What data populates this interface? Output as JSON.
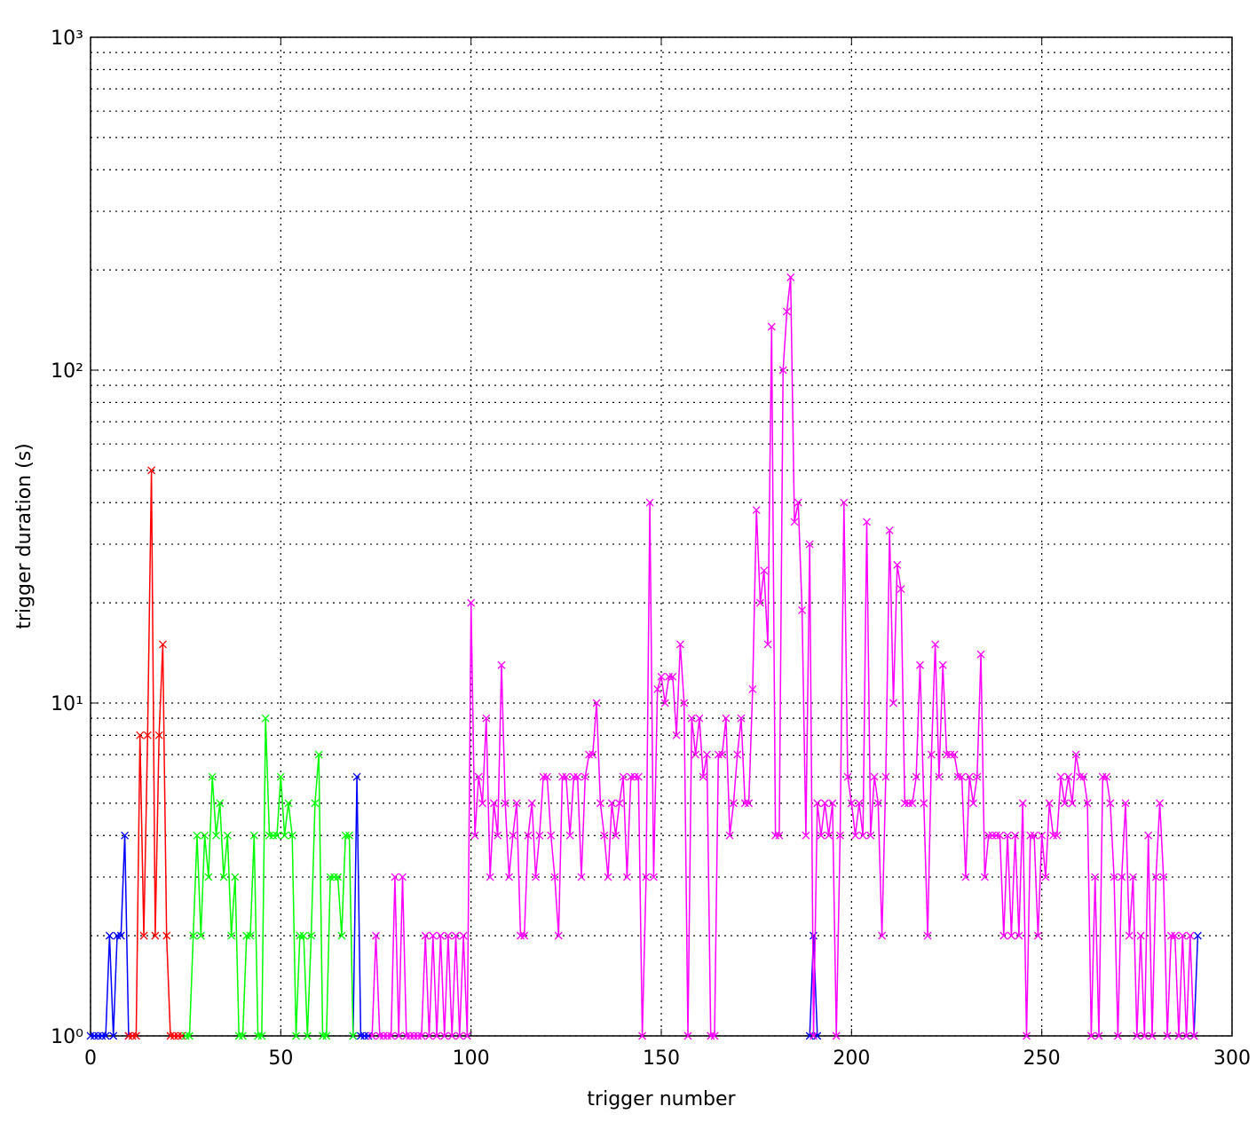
{
  "chart_data": {
    "type": "line",
    "xlabel": "trigger number",
    "ylabel": "trigger duration (s)",
    "ylog": true,
    "grid": true,
    "marker": "x",
    "xlim": [
      0,
      300
    ],
    "xticks": [
      0,
      50,
      100,
      150,
      200,
      250,
      300
    ],
    "ylim": [
      1,
      1000
    ],
    "yticks": [
      {
        "value": 1,
        "label": "10⁰"
      },
      {
        "value": 10,
        "label": "10¹"
      },
      {
        "value": 100,
        "label": "10²"
      },
      {
        "value": 1000,
        "label": "10³"
      }
    ],
    "yminorticks": [
      2,
      3,
      4,
      5,
      6,
      7,
      8,
      9,
      20,
      30,
      40,
      50,
      60,
      70,
      80,
      90,
      200,
      300,
      400,
      500,
      600,
      700,
      800,
      900
    ],
    "series": [
      {
        "color": "#0000ff",
        "x": [
          0,
          1,
          2,
          3,
          4,
          5,
          6,
          7,
          8,
          9,
          10,
          11,
          69,
          70,
          71,
          72,
          73,
          74,
          189,
          190,
          191,
          192,
          290,
          291
        ],
        "values": [
          1,
          1,
          1,
          1,
          1,
          2,
          1,
          2,
          2,
          4,
          1,
          null,
          1,
          6,
          1,
          1,
          1,
          null,
          1,
          2,
          1,
          null,
          1,
          2
        ]
      },
      {
        "color": "#ff0000",
        "x": [
          10,
          11,
          12,
          13,
          14,
          15,
          16,
          17,
          18,
          19,
          20,
          21,
          22,
          23,
          24
        ],
        "values": [
          1,
          1,
          1,
          8,
          2,
          8,
          50,
          2,
          8,
          15,
          2,
          1,
          1,
          1,
          1
        ]
      },
      {
        "color": "#00ff00",
        "x": [
          25,
          26,
          27,
          28,
          29,
          30,
          31,
          32,
          33,
          34,
          35,
          36,
          37,
          38,
          39,
          40,
          41,
          42,
          43,
          44,
          45,
          46,
          47,
          48,
          49,
          50,
          51,
          52,
          53,
          54,
          55,
          56,
          57,
          58,
          59,
          60,
          61,
          62,
          63,
          64,
          65,
          66,
          67,
          68,
          69
        ],
        "values": [
          1,
          1,
          2,
          4,
          2,
          4,
          3,
          6,
          4,
          5,
          3,
          4,
          2,
          3,
          1,
          1,
          2,
          2,
          4,
          1,
          1,
          9,
          4,
          4,
          4,
          6,
          4,
          5,
          4,
          1,
          2,
          2,
          1,
          2,
          5,
          7,
          1,
          1,
          3,
          3,
          3,
          2,
          4,
          4,
          1
        ]
      },
      {
        "color": "#ff00ff",
        "x": [
          74,
          75,
          76,
          77,
          78,
          79,
          80,
          81,
          82,
          83,
          84,
          85,
          86,
          87,
          88,
          89,
          90,
          91,
          92,
          93,
          94,
          95,
          96,
          97,
          98,
          99,
          100,
          101,
          102,
          103,
          104,
          105,
          106,
          107,
          108,
          109,
          110,
          111,
          112,
          113,
          114,
          115,
          116,
          117,
          118,
          119,
          120,
          121,
          122,
          123,
          124,
          125,
          126,
          127,
          128,
          129,
          130,
          131,
          132,
          133,
          134,
          135,
          136,
          137,
          138,
          139,
          140,
          141,
          142,
          143,
          144,
          145,
          146,
          147,
          148,
          149,
          150,
          151,
          152,
          153,
          154,
          155,
          156,
          157,
          158,
          159,
          160,
          161,
          162,
          163,
          164,
          165,
          166,
          167,
          168,
          169,
          170,
          171,
          172,
          173,
          174,
          175,
          176,
          177,
          178,
          179,
          180,
          181,
          182,
          183,
          184,
          185,
          186,
          187,
          188,
          189,
          190,
          191,
          192,
          193,
          194,
          195,
          196,
          197,
          198,
          199,
          200,
          201,
          202,
          203,
          204,
          205,
          206,
          207,
          208,
          209,
          210,
          211,
          212,
          213,
          214,
          215,
          216,
          217,
          218,
          219,
          220,
          221,
          222,
          223,
          224,
          225,
          226,
          227,
          228,
          229,
          230,
          231,
          232,
          233,
          234,
          235,
          236,
          237,
          238,
          239,
          240,
          241,
          242,
          243,
          244,
          245,
          246,
          247,
          248,
          249,
          250,
          251,
          252,
          253,
          254,
          255,
          256,
          257,
          258,
          259,
          260,
          261,
          262,
          263,
          264,
          265,
          266,
          267,
          268,
          269,
          270,
          271,
          272,
          273,
          274,
          275,
          276,
          277,
          278,
          279,
          280,
          281,
          282,
          283,
          284,
          285,
          286,
          287,
          288,
          289,
          290
        ],
        "values": [
          1,
          2,
          1,
          1,
          1,
          1,
          3,
          1,
          3,
          1,
          1,
          1,
          1,
          1,
          2,
          1,
          2,
          1,
          2,
          1,
          2,
          1,
          2,
          1,
          2,
          1,
          20,
          4,
          6,
          5,
          9,
          3,
          5,
          4,
          13,
          5,
          3,
          4,
          5,
          2,
          2,
          4,
          5,
          3,
          4,
          6,
          6,
          4,
          3,
          2,
          6,
          6,
          4,
          6,
          6,
          3,
          6,
          7,
          7,
          10,
          5,
          4,
          3,
          5,
          4,
          5,
          6,
          3,
          6,
          6,
          6,
          1,
          3,
          40,
          3,
          11,
          12,
          10,
          12,
          12,
          8,
          15,
          10,
          1,
          9,
          7,
          9,
          6,
          7,
          1,
          1,
          7,
          7,
          9,
          4,
          5,
          7,
          9,
          5,
          5,
          11,
          38,
          20,
          25,
          15,
          135,
          4,
          4,
          100,
          150,
          190,
          35,
          40,
          19,
          4,
          30,
          1,
          5,
          4,
          5,
          4,
          5,
          1,
          4,
          40,
          6,
          5,
          4,
          5,
          4,
          35,
          4,
          6,
          5,
          2,
          6,
          33,
          10,
          26,
          22,
          5,
          5,
          5,
          6,
          13,
          5,
          2,
          7,
          15,
          6,
          13,
          7,
          7,
          7,
          6,
          6,
          3,
          6,
          5,
          6,
          14,
          3,
          4,
          4,
          4,
          4,
          2,
          4,
          2,
          4,
          2,
          5,
          1,
          4,
          4,
          2,
          4,
          3,
          5,
          4,
          4,
          6,
          5,
          6,
          5,
          7,
          6,
          6,
          5,
          1,
          3,
          1,
          6,
          6,
          5,
          3,
          1,
          3,
          5,
          2,
          3,
          1,
          2,
          1,
          4,
          1,
          3,
          5,
          3,
          1,
          2,
          2,
          1,
          2,
          1,
          2,
          1
        ]
      }
    ]
  }
}
